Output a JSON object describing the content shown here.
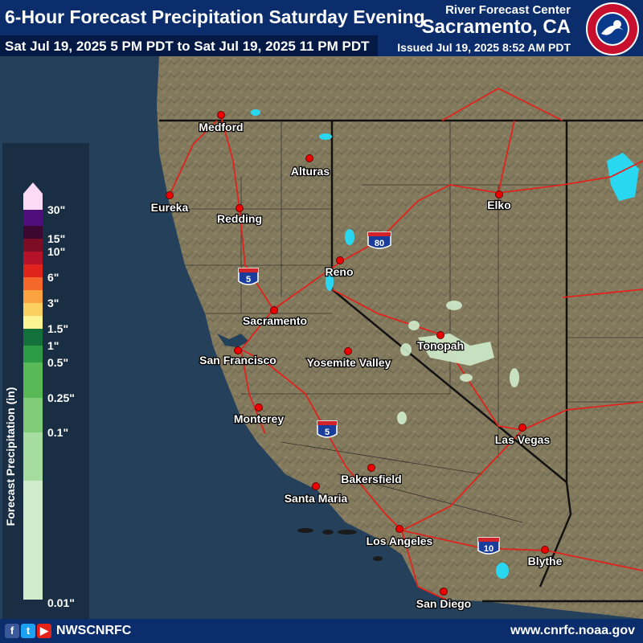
{
  "header": {
    "title": "6-Hour Forecast Precipitation Saturday Evening",
    "subtitle": "Sat Jul 19, 2025 5 PM PDT to Sat Jul 19, 2025 11 PM PDT",
    "office_label": "River Forecast Center",
    "office_name": "Sacramento, CA",
    "issued": "Issued Jul 19, 2025 8:52 AM PDT",
    "logo_icon": "nws-logo-icon"
  },
  "legend": {
    "title": "Forecast Precipitation (in)",
    "bins": [
      {
        "label": "0.01\"",
        "color": "#cfeccb"
      },
      {
        "label": "0.1\"",
        "color": "#a6dca0"
      },
      {
        "label": "0.25\"",
        "color": "#7fcb78"
      },
      {
        "label": "0.5\"",
        "color": "#59b956"
      },
      {
        "label": "1\"",
        "color": "#2e9c44"
      },
      {
        "label": "1.5\"",
        "color": "#13703a"
      },
      {
        "label": "",
        "color": "#fdf594"
      },
      {
        "label": "3\"",
        "color": "#fbd060"
      },
      {
        "label": "",
        "color": "#f9a23f"
      },
      {
        "label": "6\"",
        "color": "#f3672a"
      },
      {
        "label": "",
        "color": "#e0231c"
      },
      {
        "label": "10\"",
        "color": "#b31228"
      },
      {
        "label": "15\"",
        "color": "#7d0d24"
      },
      {
        "label": "",
        "color": "#3c0730"
      },
      {
        "label": "30\"",
        "color": "#500e7c"
      }
    ],
    "top_arrow_color": "#fcd9f4"
  },
  "map": {
    "ocean_color": "#24405a",
    "land_color": "#837a5e",
    "highway_color": "#e0231c",
    "precip_color": "#cfeccb",
    "cities": [
      {
        "name": "Medford",
        "dot": "medford"
      },
      {
        "name": "Alturas",
        "dot": "alturas"
      },
      {
        "name": "Eureka",
        "dot": "eureka"
      },
      {
        "name": "Redding",
        "dot": "redding"
      },
      {
        "name": "Elko",
        "dot": "elko"
      },
      {
        "name": "Reno",
        "dot": "reno"
      },
      {
        "name": "Sacramento",
        "dot": "sacramento"
      },
      {
        "name": "Tonopah",
        "dot": "tonopah"
      },
      {
        "name": "San Francisco",
        "dot": "sf"
      },
      {
        "name": "Yosemite Valley",
        "dot": "yosemite"
      },
      {
        "name": "Monterey",
        "dot": "monterey"
      },
      {
        "name": "Las Vegas",
        "dot": "lasvegas"
      },
      {
        "name": "Bakersfield",
        "dot": "bakersfield"
      },
      {
        "name": "Santa Maria",
        "dot": "santamaria"
      },
      {
        "name": "Los Angeles",
        "dot": "la"
      },
      {
        "name": "Blythe",
        "dot": "blythe"
      },
      {
        "name": "San Diego",
        "dot": "sandiego"
      }
    ],
    "interstate_shields": [
      "5",
      "80",
      "5",
      "10"
    ]
  },
  "footer": {
    "handle": "NWSCNRFC",
    "website": "www.cnrfc.noaa.gov",
    "social_icons": [
      "facebook-icon",
      "twitter-icon",
      "youtube-icon"
    ]
  }
}
